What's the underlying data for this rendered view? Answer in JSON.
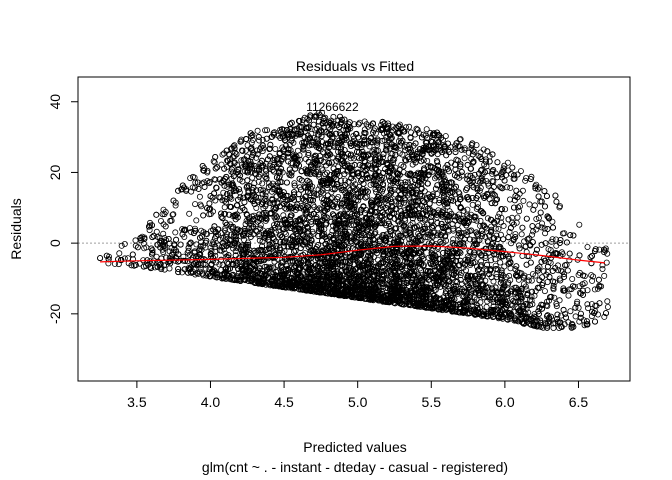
{
  "chart_data": {
    "type": "scatter",
    "title": "Residuals vs Fitted",
    "xlabel": "Predicted values",
    "ylabel": "Residuals",
    "subtitle": "glm(cnt ~ . - instant - dteday - casual - registered)",
    "xlim": [
      3.1,
      6.85
    ],
    "ylim": [
      -39,
      47
    ],
    "x_ticks": [
      "3.5",
      "4.0",
      "4.5",
      "5.0",
      "5.5",
      "6.0",
      "6.5"
    ],
    "y_ticks": [
      "-20",
      "0",
      "20",
      "40"
    ],
    "x_tick_values": [
      3.5,
      4.0,
      4.5,
      5.0,
      5.5,
      6.0,
      6.5
    ],
    "y_tick_values": [
      -20,
      0,
      20,
      40
    ],
    "reference_line": {
      "y": 0,
      "style": "dotted",
      "color": "#9e9e9e"
    },
    "point_labels": [
      {
        "text": "11266622",
        "x": 4.65,
        "y": 38.5
      }
    ],
    "colors": {
      "points": "#000000",
      "smooth": "#ff0000"
    },
    "smooth_line": {
      "name": "",
      "x": [
        3.25,
        3.5,
        3.75,
        4.0,
        4.25,
        4.5,
        4.75,
        5.0,
        5.25,
        5.5,
        5.75,
        6.0,
        6.25,
        6.5,
        6.68
      ],
      "y": [
        -5.3,
        -5.0,
        -4.8,
        -4.6,
        -4.3,
        -4.0,
        -3.3,
        -2.0,
        -0.9,
        -0.8,
        -1.4,
        -2.4,
        -3.5,
        -4.8,
        -5.6
      ]
    },
    "scatter_envelope": {
      "x": [
        3.25,
        3.5,
        3.75,
        4.0,
        4.25,
        4.5,
        4.75,
        5.0,
        5.25,
        5.5,
        5.75,
        6.0,
        6.25,
        6.5,
        6.7
      ],
      "lower": [
        -5.5,
        -6.5,
        -8.0,
        -9.5,
        -11,
        -12.5,
        -14,
        -15.5,
        -17,
        -18.5,
        -20,
        -21.5,
        -24,
        -24,
        -21
      ],
      "upper": [
        -4,
        2,
        14,
        24,
        31,
        34,
        37,
        35,
        34,
        32,
        29,
        24,
        17,
        8,
        -2
      ]
    },
    "point_count": 7500
  }
}
